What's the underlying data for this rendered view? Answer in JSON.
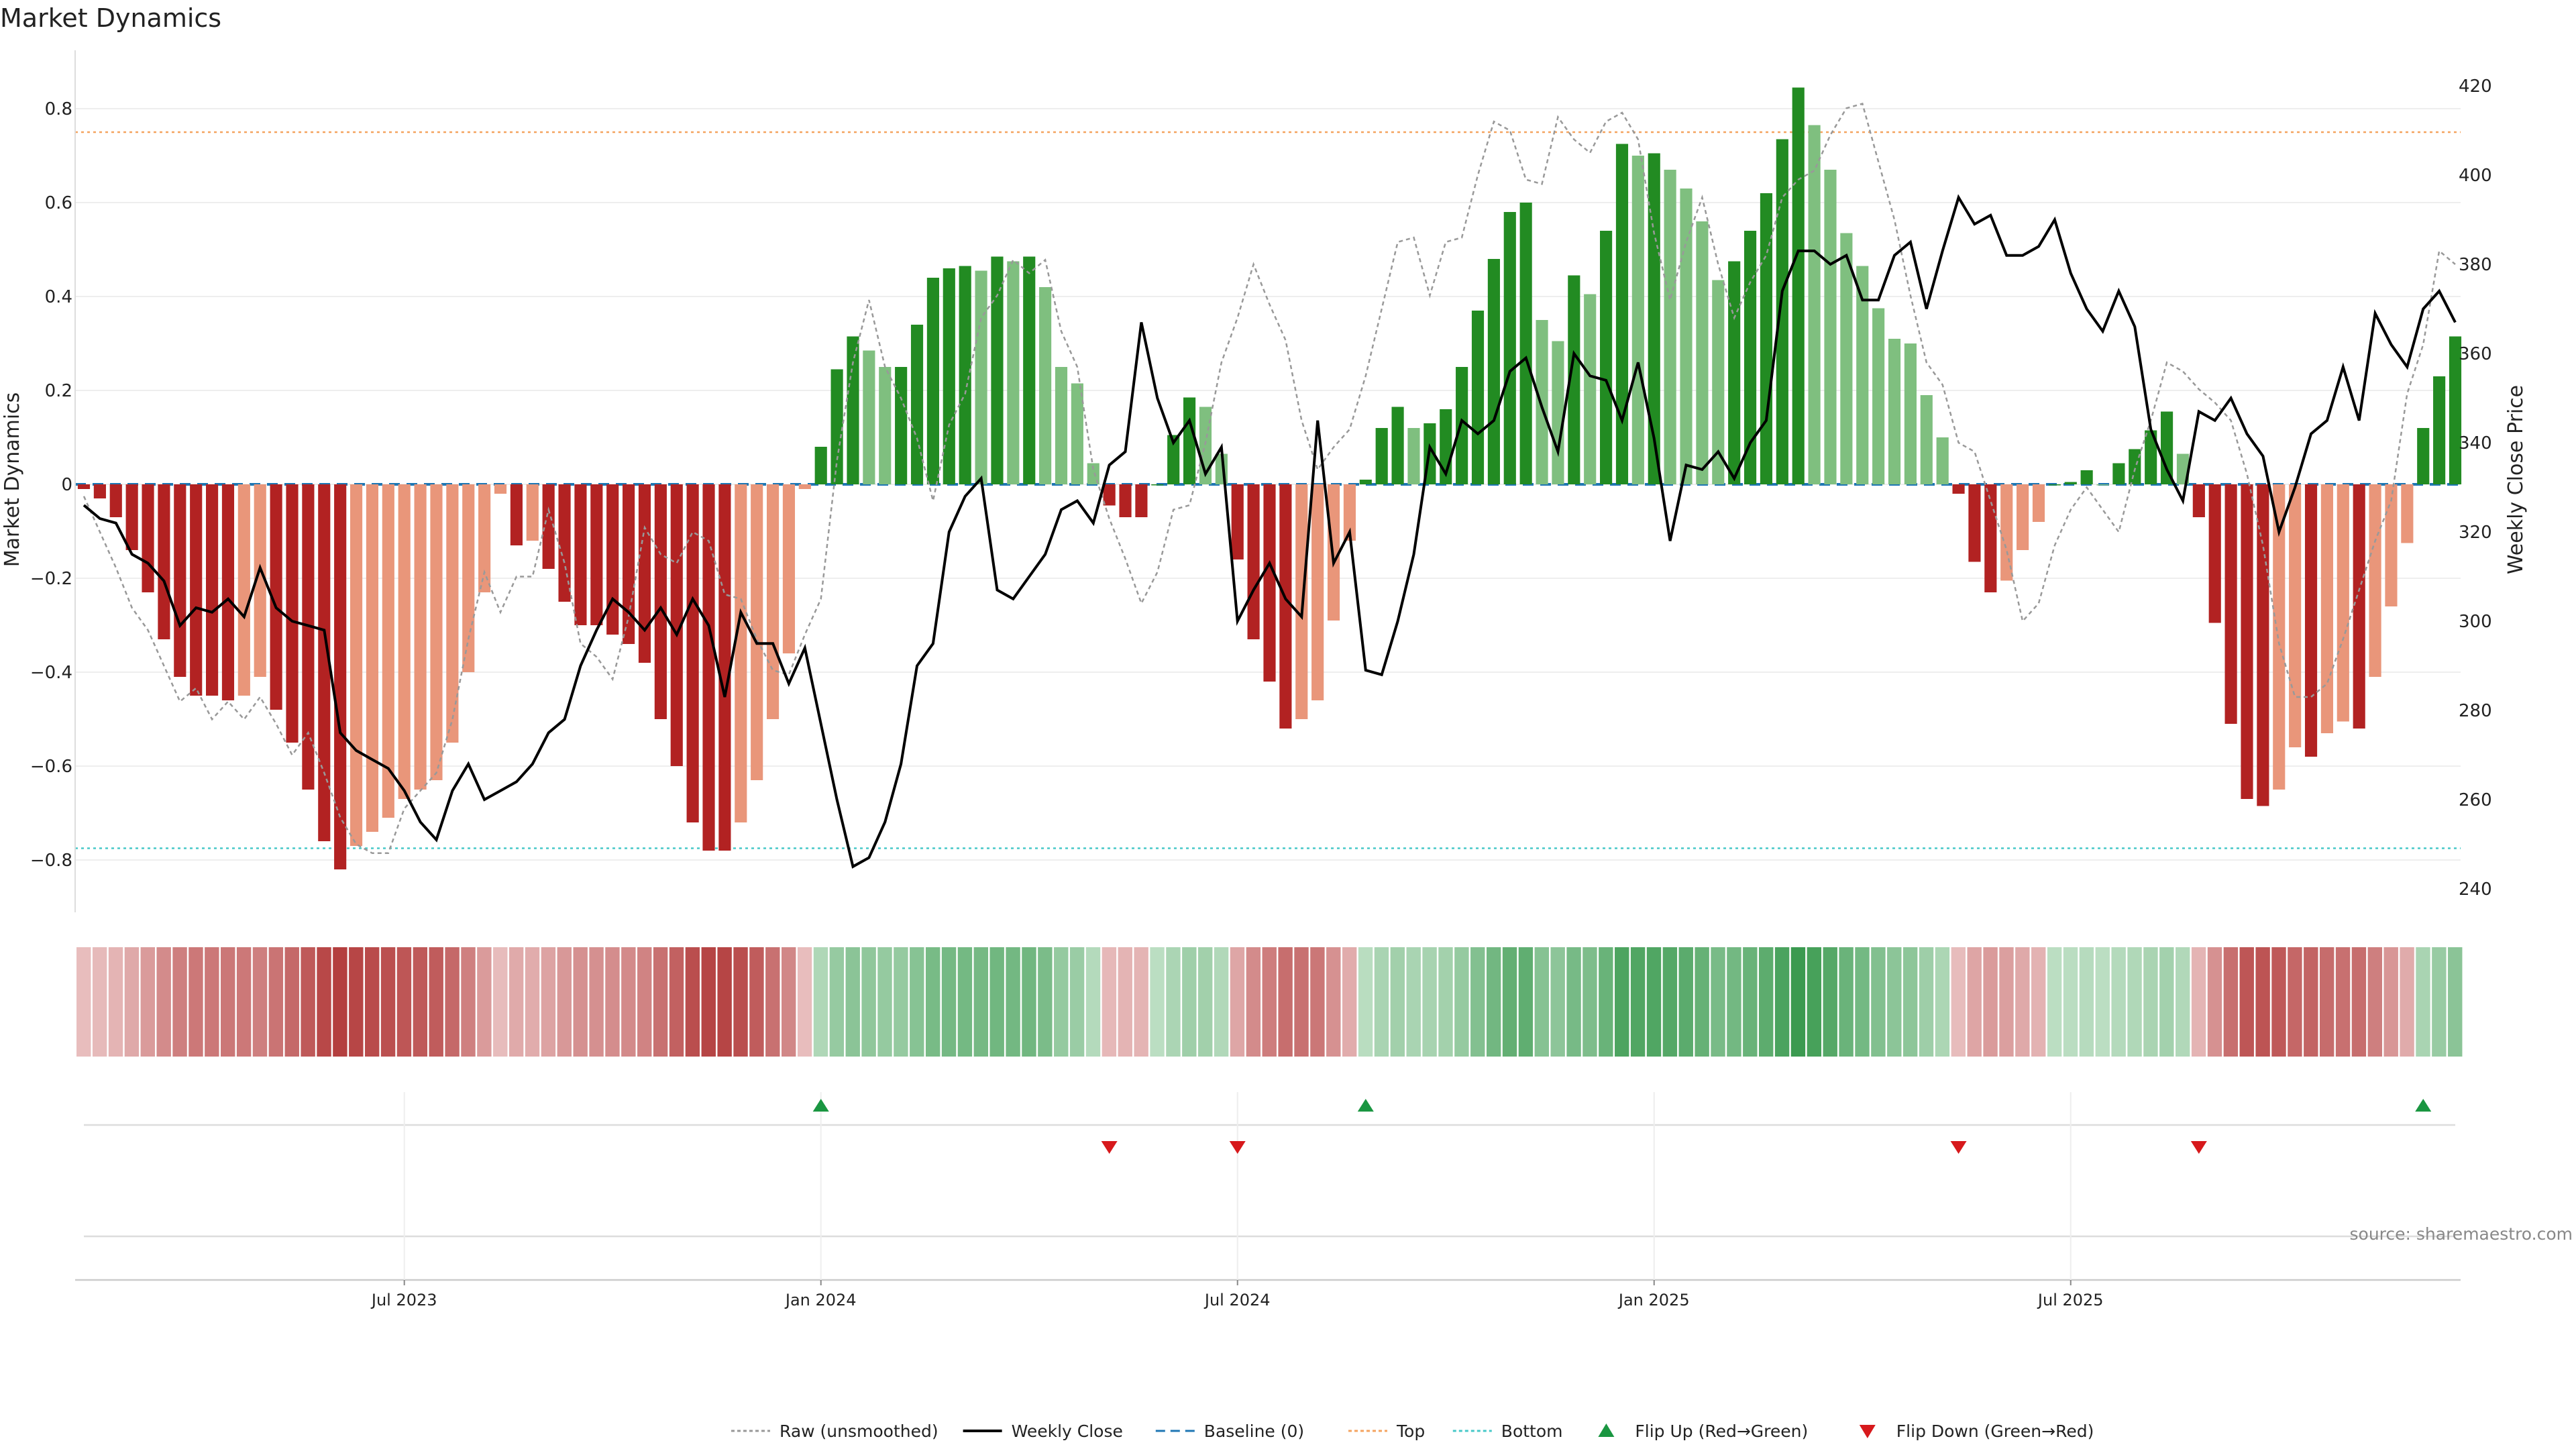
{
  "title": "Market Dynamics",
  "source": "source: sharemaestro.com",
  "y_left_label": "Market Dynamics",
  "y_right_label": "Weekly Close Price",
  "chart_data": {
    "type": "bar",
    "title": "Market Dynamics",
    "ylabel": "Market Dynamics",
    "y2label": "Weekly Close Price",
    "ylim": [
      -0.92,
      0.92
    ],
    "y2lim": [
      238,
      426
    ],
    "yticks": [
      -0.8,
      -0.6,
      -0.4,
      -0.2,
      0,
      0.2,
      0.4,
      0.6,
      0.8
    ],
    "ytick_labels": [
      "−0.8",
      "−0.6",
      "−0.4",
      "−0.2",
      "0",
      "0.2",
      "0.4",
      "0.6",
      "0.8"
    ],
    "y2ticks": [
      240,
      260,
      280,
      300,
      320,
      340,
      360,
      380,
      400,
      420
    ],
    "top": 0.75,
    "bottom": -0.775,
    "x_ticks": [
      {
        "label": "Jul 2023",
        "week": 20
      },
      {
        "label": "Jan 2024",
        "week": 46
      },
      {
        "label": "Jul 2024",
        "week": 72
      },
      {
        "label": "Jan 2025",
        "week": 98
      },
      {
        "label": "Jul 2025",
        "week": 124
      }
    ],
    "grid": true,
    "legend_position": "bottom-center",
    "colors": {
      "strong_up": "#228b22",
      "weak_up": "#7fbf7f",
      "strong_down": "#b22222",
      "weak_down": "#e9967a",
      "top_line": "#f4a460",
      "bottom_line": "#48c9c9",
      "baseline": "#1f77b4",
      "raw": "#999999",
      "close": "#000000",
      "flip_up": "#1a9641",
      "flip_down": "#d7191c"
    },
    "market_dynamics": [
      -0.01,
      -0.03,
      -0.07,
      -0.14,
      -0.23,
      -0.33,
      -0.41,
      -0.45,
      -0.45,
      -0.46,
      -0.45,
      -0.41,
      -0.48,
      -0.55,
      -0.65,
      -0.76,
      -0.82,
      -0.77,
      -0.74,
      -0.71,
      -0.67,
      -0.65,
      -0.63,
      -0.55,
      -0.4,
      -0.23,
      -0.02,
      -0.13,
      -0.12,
      -0.18,
      -0.25,
      -0.3,
      -0.3,
      -0.32,
      -0.34,
      -0.38,
      -0.5,
      -0.6,
      -0.72,
      -0.78,
      -0.78,
      -0.72,
      -0.63,
      -0.5,
      -0.36,
      -0.01,
      0.08,
      0.245,
      0.315,
      0.285,
      0.25,
      0.25,
      0.34,
      0.44,
      0.46,
      0.465,
      0.455,
      0.485,
      0.475,
      0.485,
      0.42,
      0.25,
      0.215,
      0.045,
      -0.045,
      -0.07,
      -0.07,
      0.0,
      0.105,
      0.185,
      0.165,
      0.065,
      -0.16,
      -0.33,
      -0.42,
      -0.52,
      -0.5,
      -0.46,
      -0.29,
      -0.12,
      0.01,
      0.12,
      0.165,
      0.12,
      0.13,
      0.16,
      0.25,
      0.37,
      0.48,
      0.58,
      0.6,
      0.35,
      0.305,
      0.445,
      0.405,
      0.54,
      0.725,
      0.7,
      0.705,
      0.67,
      0.63,
      0.56,
      0.435,
      0.475,
      0.54,
      0.62,
      0.735,
      0.845,
      0.765,
      0.67,
      0.535,
      0.465,
      0.375,
      0.31,
      0.3,
      0.19,
      0.1,
      -0.02,
      -0.165,
      -0.23,
      -0.205,
      -0.14,
      -0.08,
      0.0,
      0.005,
      0.03,
      0.0,
      0.045,
      0.075,
      0.115,
      0.155,
      0.065,
      -0.07,
      -0.295,
      -0.51,
      -0.67,
      -0.685,
      -0.65,
      -0.56,
      -0.58,
      -0.53,
      -0.505,
      -0.52,
      -0.41,
      -0.26,
      -0.125,
      0.12,
      0.23,
      0.315
    ],
    "weekly_close": [
      326,
      323,
      322,
      315,
      313,
      309,
      299,
      303,
      302,
      305,
      301,
      312,
      303,
      300,
      299,
      298,
      275,
      271,
      269,
      267,
      262,
      255,
      251,
      262,
      268,
      260,
      262,
      264,
      268,
      275,
      278,
      290,
      298,
      305,
      302,
      298,
      303,
      297,
      305,
      299,
      283,
      302,
      295,
      295,
      286,
      294,
      277,
      260,
      245,
      247,
      255,
      268,
      290,
      295,
      320,
      328,
      332,
      307,
      305,
      310,
      315,
      325,
      327,
      322,
      335,
      338,
      367,
      350,
      340,
      345,
      333,
      339,
      300,
      307,
      313,
      305,
      301,
      345,
      313,
      320,
      289,
      288,
      300,
      315,
      339,
      333,
      345,
      342,
      345,
      356,
      359,
      348,
      338,
      360,
      355,
      354,
      345,
      358,
      341,
      318,
      335,
      334,
      338,
      332,
      340,
      345,
      374,
      383,
      383,
      380,
      382,
      372,
      372,
      382,
      385,
      370,
      383,
      395,
      389,
      391,
      382,
      382,
      384,
      390,
      378,
      370,
      365,
      374,
      366,
      343,
      334,
      327,
      347,
      345,
      350,
      342,
      337,
      320,
      330,
      342,
      345,
      357,
      345,
      369,
      362,
      357,
      370,
      374,
      367
    ],
    "raw": [
      328,
      320,
      312,
      303,
      298,
      290,
      282,
      285,
      278,
      282,
      278,
      283,
      277,
      270,
      275,
      266,
      256,
      250,
      248,
      248,
      258,
      262,
      266,
      278,
      296,
      311,
      302,
      310,
      310,
      325,
      313,
      295,
      292,
      287,
      301,
      321,
      315,
      313,
      320,
      318,
      306,
      305,
      296,
      289,
      288,
      297,
      305,
      336,
      358,
      372,
      357,
      350,
      341,
      327,
      344,
      351,
      368,
      373,
      381,
      378,
      381,
      365,
      357,
      334,
      323,
      314,
      304,
      311,
      325,
      326,
      340,
      358,
      368,
      380,
      371,
      363,
      345,
      334,
      339,
      343,
      355,
      370,
      385,
      386,
      373,
      385,
      386,
      400,
      412,
      410,
      399,
      398,
      413,
      408,
      405,
      412,
      414,
      408,
      387,
      372,
      385,
      395,
      380,
      368,
      376,
      382,
      395,
      399,
      401,
      409,
      415,
      416,
      403,
      390,
      373,
      358,
      353,
      340,
      338,
      327,
      316,
      300,
      304,
      317,
      325,
      330,
      325,
      320,
      334,
      345,
      358,
      356,
      352,
      349,
      345,
      333,
      317,
      295,
      283,
      283,
      286,
      296,
      307,
      318,
      327,
      351,
      362,
      383,
      380
    ]
  },
  "legend": [
    {
      "label": "Raw (unsmoothed)",
      "kind": "dotted-line",
      "color": "#999999"
    },
    {
      "label": "Weekly Close",
      "kind": "solid-line",
      "color": "#000000"
    },
    {
      "label": "Baseline (0)",
      "kind": "dashed-line",
      "color": "#1f77b4"
    },
    {
      "label": "Top",
      "kind": "dotted-line",
      "color": "#f4a460"
    },
    {
      "label": "Bottom",
      "kind": "dotted-line",
      "color": "#48c9c9"
    },
    {
      "label": "Flip Up (Red→Green)",
      "kind": "triangle-up",
      "color": "#1a9641"
    },
    {
      "label": "Flip Down (Green→Red)",
      "kind": "triangle-down",
      "color": "#d7191c"
    }
  ]
}
